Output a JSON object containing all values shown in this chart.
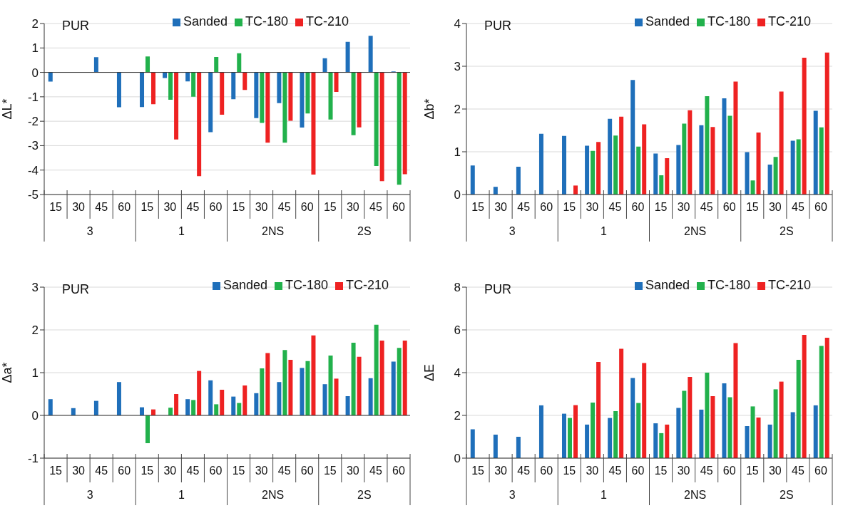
{
  "chart_data": [
    {
      "type": "bar",
      "ylabel": "ΔL*",
      "categories": [
        "15",
        "30",
        "45",
        "60",
        "15",
        "30",
        "45",
        "60",
        "15",
        "30",
        "45",
        "60",
        "15",
        "30",
        "45",
        "60"
      ],
      "annotations": [
        "PUR",
        "3",
        "1",
        "2NS",
        "2S"
      ],
      "ylim": [
        -5,
        2
      ],
      "yticks": [
        -5,
        -4,
        -3,
        -2,
        -1,
        0,
        1,
        2
      ],
      "grid": "y",
      "legend": "top",
      "series": [
        {
          "name": "Sanded",
          "color": "#1f6fba",
          "values": [
            -0.38,
            null,
            0.62,
            -1.43,
            -1.42,
            -0.23,
            -0.37,
            -2.45,
            -1.1,
            -1.87,
            -1.26,
            -2.26,
            0.58,
            1.25,
            1.5,
            0.04
          ]
        },
        {
          "name": "TC-180",
          "color": "#22b14c",
          "values": [
            null,
            null,
            null,
            null,
            0.65,
            -1.12,
            -1.0,
            0.63,
            0.78,
            -2.07,
            -2.88,
            -1.68,
            -1.93,
            -2.57,
            -3.83,
            -4.6
          ]
        },
        {
          "name": "TC-210",
          "color": "#ee2222",
          "values": [
            null,
            null,
            null,
            null,
            -1.3,
            -2.75,
            -4.25,
            -1.73,
            -0.72,
            -2.88,
            -1.98,
            -4.18,
            -0.8,
            -2.25,
            -4.45,
            -4.17
          ]
        }
      ]
    },
    {
      "type": "bar",
      "ylabel": "Δb*",
      "categories": [
        "15",
        "30",
        "45",
        "60",
        "15",
        "30",
        "45",
        "60",
        "15",
        "30",
        "45",
        "60",
        "15",
        "30",
        "45",
        "60"
      ],
      "annotations": [
        "PUR",
        "3",
        "1",
        "2NS",
        "2S"
      ],
      "ylim": [
        0,
        4
      ],
      "yticks": [
        0,
        1,
        2,
        3,
        4
      ],
      "grid": "y",
      "legend": "top right",
      "series": [
        {
          "name": "Sanded",
          "color": "#1f6fba",
          "values": [
            0.68,
            0.18,
            0.65,
            1.42,
            1.37,
            1.14,
            1.77,
            2.68,
            0.96,
            1.16,
            1.62,
            2.25,
            0.99,
            0.7,
            1.26,
            1.96
          ]
        },
        {
          "name": "TC-180",
          "color": "#22b14c",
          "values": [
            null,
            null,
            null,
            null,
            null,
            1.02,
            1.38,
            1.12,
            0.45,
            1.66,
            2.3,
            1.84,
            0.33,
            0.88,
            1.29,
            1.57
          ]
        },
        {
          "name": "TC-210",
          "color": "#ee2222",
          "values": [
            null,
            null,
            null,
            null,
            0.21,
            1.23,
            1.82,
            1.64,
            0.85,
            1.97,
            1.58,
            2.64,
            1.45,
            2.41,
            3.2,
            3.32
          ]
        }
      ]
    },
    {
      "type": "bar",
      "ylabel": "Δa*",
      "categories": [
        "15",
        "30",
        "45",
        "60",
        "15",
        "30",
        "45",
        "60",
        "15",
        "30",
        "45",
        "60",
        "15",
        "30",
        "45",
        "60"
      ],
      "annotations": [
        "PUR",
        "3",
        "1",
        "2NS",
        "2S"
      ],
      "ylim": [
        -1,
        3
      ],
      "yticks": [
        -1,
        0,
        1,
        2,
        3
      ],
      "grid": "y",
      "legend": "top right",
      "series": [
        {
          "name": "Sanded",
          "color": "#1f6fba",
          "values": [
            0.38,
            0.17,
            0.34,
            0.78,
            0.19,
            null,
            0.38,
            0.82,
            0.44,
            0.52,
            0.78,
            1.11,
            0.73,
            0.45,
            0.87,
            1.26
          ]
        },
        {
          "name": "TC-180",
          "color": "#22b14c",
          "values": [
            null,
            null,
            null,
            null,
            -0.65,
            0.18,
            0.36,
            0.26,
            0.29,
            1.1,
            1.53,
            1.27,
            1.4,
            1.7,
            2.12,
            1.58
          ]
        },
        {
          "name": "TC-210",
          "color": "#ee2222",
          "values": [
            null,
            null,
            null,
            null,
            0.14,
            0.5,
            1.04,
            0.6,
            0.7,
            1.46,
            1.3,
            1.87,
            0.86,
            1.37,
            1.75,
            1.75
          ]
        }
      ]
    },
    {
      "type": "bar",
      "ylabel": "ΔE",
      "categories": [
        "15",
        "30",
        "45",
        "60",
        "15",
        "30",
        "45",
        "60",
        "15",
        "30",
        "45",
        "60",
        "15",
        "30",
        "45",
        "60"
      ],
      "annotations": [
        "PUR",
        "3",
        "1",
        "2NS",
        "2S"
      ],
      "ylim": [
        0,
        8
      ],
      "yticks": [
        0,
        2,
        4,
        6,
        8
      ],
      "grid": "y",
      "legend": "top right",
      "series": [
        {
          "name": "Sanded",
          "color": "#1f6fba",
          "values": [
            1.35,
            1.1,
            1.0,
            2.47,
            2.08,
            1.57,
            1.88,
            3.75,
            1.63,
            2.35,
            2.27,
            3.5,
            1.5,
            1.57,
            2.15,
            2.47
          ]
        },
        {
          "name": "TC-180",
          "color": "#22b14c",
          "values": [
            null,
            null,
            null,
            null,
            1.88,
            2.6,
            2.2,
            2.58,
            1.17,
            3.15,
            4.0,
            2.85,
            2.42,
            3.22,
            4.6,
            5.25
          ]
        },
        {
          "name": "TC-210",
          "color": "#ee2222",
          "values": [
            null,
            null,
            null,
            null,
            2.48,
            4.5,
            5.12,
            4.45,
            1.57,
            3.8,
            2.9,
            5.38,
            1.9,
            3.58,
            5.77,
            5.63
          ]
        }
      ]
    }
  ]
}
